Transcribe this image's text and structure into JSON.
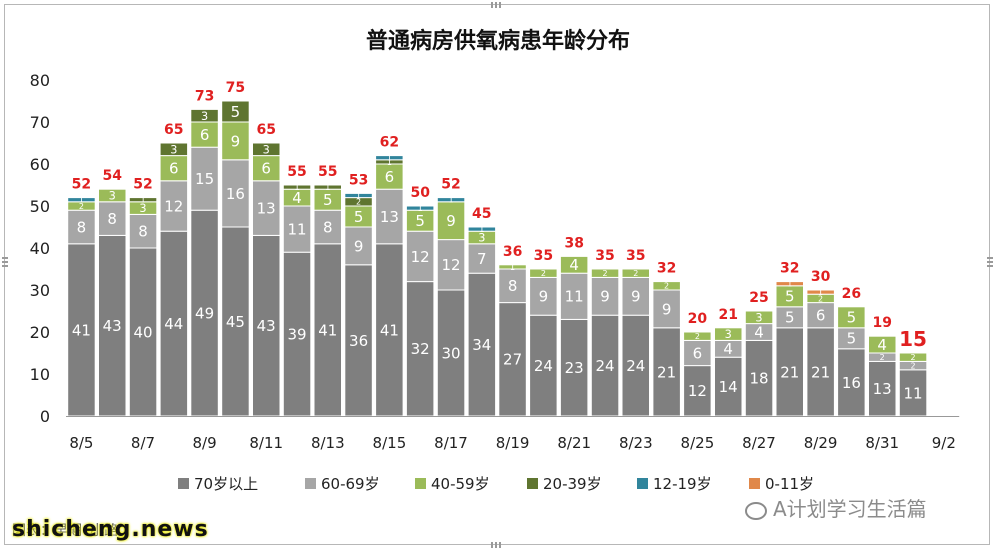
{
  "chart_data": {
    "type": "bar",
    "stacked": true,
    "title": "普通病房供氧病患年龄分布",
    "categories": [
      "8/5",
      "8/6",
      "8/7",
      "8/8",
      "8/9",
      "8/10",
      "8/11",
      "8/12",
      "8/13",
      "8/14",
      "8/15",
      "8/16",
      "8/17",
      "8/18",
      "8/19",
      "8/20",
      "8/21",
      "8/22",
      "8/23",
      "8/24",
      "8/25",
      "8/26",
      "8/27",
      "8/28",
      "8/29",
      "8/30",
      "8/31",
      "9/1"
    ],
    "x_tick_labels": [
      "8/5",
      "8/7",
      "8/9",
      "8/11",
      "8/13",
      "8/15",
      "8/17",
      "8/19",
      "8/21",
      "8/23",
      "8/25",
      "8/27",
      "8/29",
      "8/31",
      "9/2"
    ],
    "ylim": [
      0,
      80
    ],
    "yticks": [
      0,
      10,
      20,
      30,
      40,
      50,
      60,
      70,
      80
    ],
    "grid": false,
    "legend_position": "bottom",
    "series": [
      {
        "name": "70岁以上",
        "color": "#7f7f7f",
        "label_color": "#ffffff",
        "values": [
          41,
          43,
          40,
          44,
          49,
          45,
          43,
          39,
          41,
          36,
          41,
          32,
          30,
          34,
          27,
          24,
          23,
          24,
          24,
          21,
          12,
          14,
          18,
          21,
          21,
          16,
          13,
          11
        ]
      },
      {
        "name": "60-69岁",
        "color": "#a6a6a6",
        "label_color": "#ffffff",
        "values": [
          8,
          8,
          8,
          12,
          15,
          16,
          13,
          11,
          8,
          9,
          13,
          12,
          12,
          7,
          8,
          9,
          11,
          9,
          9,
          9,
          6,
          4,
          4,
          5,
          6,
          5,
          2,
          2
        ]
      },
      {
        "name": "40-59岁",
        "color": "#9bbb59",
        "label_color": "#ffffff",
        "values": [
          2,
          3,
          3,
          6,
          6,
          9,
          6,
          4,
          5,
          5,
          6,
          5,
          9,
          3,
          1,
          2,
          4,
          2,
          2,
          2,
          2,
          3,
          3,
          5,
          2,
          5,
          4,
          2
        ]
      },
      {
        "name": "20-39岁",
        "color": "#5f7530",
        "label_color": "#ffffff",
        "values": [
          0,
          0,
          1,
          3,
          3,
          5,
          3,
          1,
          1,
          2,
          1,
          0,
          0,
          0,
          0,
          0,
          0,
          0,
          0,
          0,
          0,
          0,
          0,
          0,
          0,
          0,
          0,
          0
        ]
      },
      {
        "name": "12-19岁",
        "color": "#31859c",
        "label_color": "#ffffff",
        "values": [
          1,
          0,
          0,
          0,
          0,
          0,
          0,
          0,
          0,
          1,
          1,
          1,
          1,
          1,
          0,
          0,
          0,
          0,
          0,
          0,
          0,
          0,
          0,
          0,
          0,
          0,
          0,
          0
        ]
      },
      {
        "name": "0-11岁",
        "color": "#e0884a",
        "label_color": "#ffffff",
        "values": [
          0,
          0,
          0,
          0,
          0,
          0,
          0,
          0,
          0,
          0,
          0,
          0,
          0,
          0,
          0,
          0,
          0,
          0,
          0,
          0,
          0,
          0,
          0,
          1,
          1,
          0,
          0,
          0
        ]
      }
    ],
    "totals": [
      52,
      54,
      52,
      65,
      73,
      75,
      65,
      55,
      55,
      53,
      62,
      50,
      52,
      45,
      36,
      35,
      38,
      35,
      35,
      32,
      20,
      21,
      25,
      32,
      30,
      26,
      19,
      15
    ],
    "total_label_color": "#e02020"
  },
  "watermarks": {
    "bottom_left": "shicheng.news",
    "bottom_left_caption": "图表：早期•小路",
    "bottom_right": "A计划学习生活篇"
  }
}
